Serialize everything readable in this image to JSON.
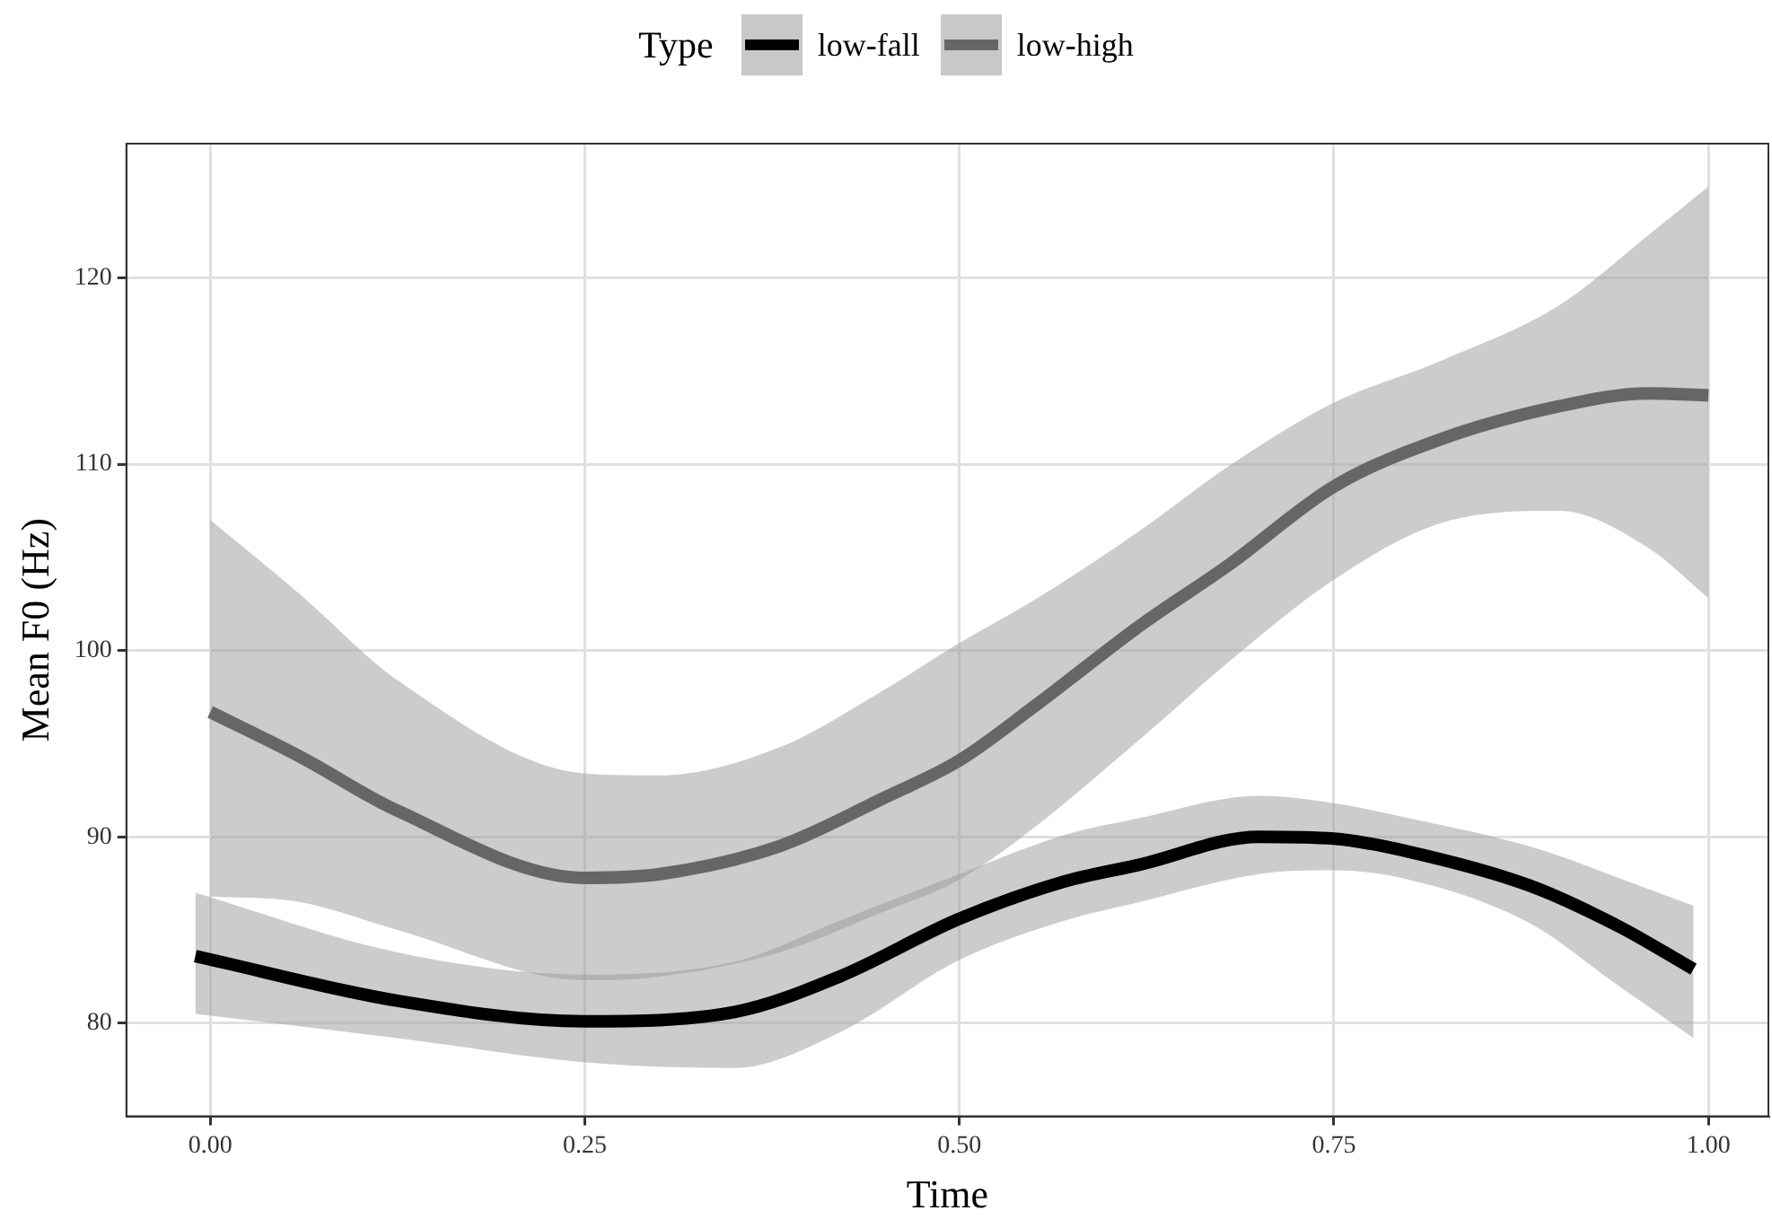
{
  "chart_data": {
    "type": "line",
    "xlabel": "Time",
    "ylabel": "Mean F0 (Hz)",
    "legend_title": "Type",
    "legend": "top",
    "xlim": [
      -0.056,
      1.04
    ],
    "ylim": [
      75.0,
      127.2
    ],
    "xticks": [
      {
        "value": 0,
        "label": "0.00"
      },
      {
        "value": 0.25,
        "label": "0.25"
      },
      {
        "value": 0.5,
        "label": "0.50"
      },
      {
        "value": 0.75,
        "label": "0.75"
      },
      {
        "value": 1,
        "label": "1.00"
      }
    ],
    "yticks": [
      80,
      90,
      100,
      110,
      120
    ],
    "grid": true,
    "marker": "none",
    "line_style": "solid",
    "series": [
      {
        "name": "low-fall",
        "color": "#000000",
        "x": [
          -0.01,
          0.125,
          0.25,
          0.35,
          0.42,
          0.5,
          0.57,
          0.62,
          0.7,
          0.75,
          0.8,
          0.88,
          0.94,
          0.99
        ],
        "values": [
          83.6,
          81.2,
          80.1,
          80.6,
          82.5,
          85.6,
          87.6,
          88.5,
          90.0,
          89.9,
          89.2,
          87.4,
          85.2,
          82.9
        ],
        "lower": [
          80.5,
          79.2,
          77.9,
          77.6,
          79.5,
          83.4,
          85.5,
          86.5,
          88.0,
          88.2,
          87.7,
          85.4,
          82.0,
          79.2
        ],
        "upper": [
          87.0,
          83.8,
          82.6,
          83.3,
          85.5,
          88.0,
          90.1,
          91.0,
          92.2,
          91.8,
          91.0,
          89.5,
          87.8,
          86.3
        ]
      },
      {
        "name": "low-high",
        "color": "#666666",
        "x": [
          0,
          0.06,
          0.125,
          0.25,
          0.3,
          0.38,
          0.45,
          0.5,
          0.55,
          0.62,
          0.68,
          0.75,
          0.82,
          0.9,
          0.96,
          1.0
        ],
        "values": [
          96.7,
          94.3,
          91.4,
          87.8,
          88.0,
          89.5,
          92.1,
          94.1,
          97.0,
          101.3,
          104.6,
          108.8,
          111.3,
          113.1,
          113.8,
          113.7
        ],
        "lower": [
          86.8,
          86.5,
          85.0,
          82.3,
          82.5,
          83.8,
          86.0,
          87.7,
          90.5,
          95.2,
          99.4,
          103.8,
          106.8,
          107.5,
          105.5,
          102.8
        ],
        "upper": [
          107.0,
          103.0,
          98.4,
          93.4,
          93.3,
          94.8,
          97.9,
          100.4,
          102.7,
          106.4,
          109.9,
          113.3,
          115.5,
          118.5,
          122.3,
          124.9
        ]
      }
    ]
  }
}
